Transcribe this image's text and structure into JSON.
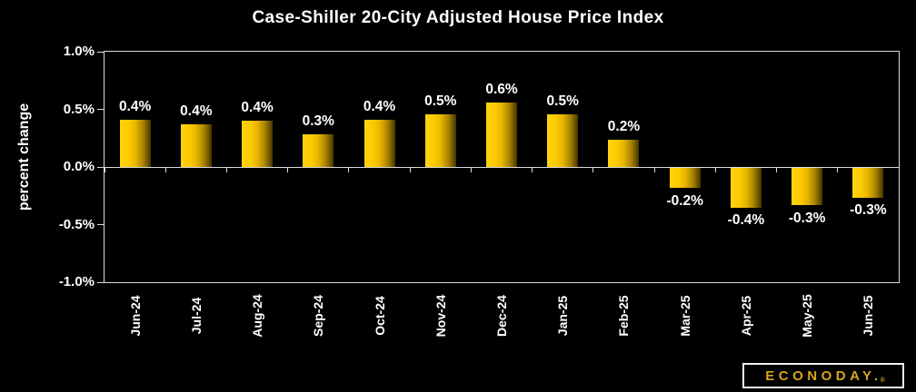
{
  "title": "Case-Shiller 20-City Adjusted House Price Index",
  "branding": {
    "logo_text": "ECONODAY.",
    "registered_mark": "®",
    "logo_color": "#d6a51c"
  },
  "colors": {
    "background": "#000000",
    "text": "#ffffff",
    "axis_line": "#dcdcdc",
    "bar_gradient_bright": "#ffd30e",
    "bar_gradient_dark": "#443600"
  },
  "chart_data": {
    "type": "bar",
    "title": "Case-Shiller 20-City Adjusted House Price Index",
    "xlabel": "",
    "ylabel": "percent change",
    "categories": [
      "Jun-24",
      "Jul-24",
      "Aug-24",
      "Sep-24",
      "Oct-24",
      "Nov-24",
      "Dec-24",
      "Jan-25",
      "Feb-25",
      "Mar-25",
      "Apr-25",
      "May-25",
      "Jun-25"
    ],
    "values": [
      0.41,
      0.37,
      0.4,
      0.28,
      0.41,
      0.46,
      0.56,
      0.46,
      0.24,
      -0.18,
      -0.35,
      -0.33,
      -0.26
    ],
    "data_labels": [
      "0.4%",
      "0.4%",
      "0.4%",
      "0.3%",
      "0.4%",
      "0.5%",
      "0.6%",
      "0.5%",
      "0.2%",
      "-0.2%",
      "-0.4%",
      "-0.3%",
      "-0.3%"
    ],
    "ylim": [
      -1.0,
      1.0
    ],
    "yticks": [
      {
        "label": "1.0%",
        "value": 1.0
      },
      {
        "label": "0.5%",
        "value": 0.5
      },
      {
        "label": "0.0%",
        "value": 0.0
      },
      {
        "label": "-0.5%",
        "value": -0.5
      },
      {
        "label": "-1.0%",
        "value": -1.0
      }
    ],
    "grid": "zero-line-only",
    "legend": "none",
    "bar_style": "gold horizontal gradient, bright left to dark right",
    "label_position": "outside bar end"
  }
}
